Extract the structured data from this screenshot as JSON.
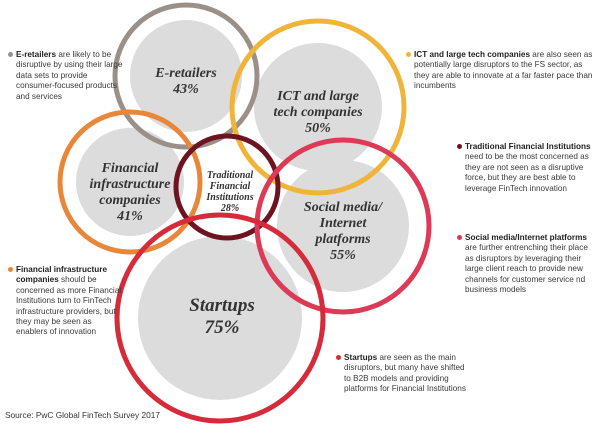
{
  "colors": {
    "e_retailers": "#9a9088",
    "ict": "#f0b43a",
    "traditional": "#6e1320",
    "social_media": "#dc3a56",
    "financial_infrastructure": "#e8873a",
    "startups": "#d52b3b",
    "fill": "#dcdcdc"
  },
  "circles": {
    "e_retailers": {
      "name": "E-retailers",
      "pct": "43%"
    },
    "ict": {
      "name_line1": "ICT and large",
      "name_line2": "tech companies",
      "pct": "50%"
    },
    "financial_infrastructure": {
      "name_line1": "Financial",
      "name_line2": "infrastructure",
      "name_line3": "companies",
      "pct": "41%"
    },
    "traditional": {
      "name_line1": "Traditional",
      "name_line2": "Financial",
      "name_line3": "Institutions",
      "pct": "28%"
    },
    "social_media": {
      "name_line1": "Social media/",
      "name_line2": "Internet",
      "name_line3": "platforms",
      "pct": "55%"
    },
    "startups": {
      "name": "Startups",
      "pct": "75%"
    }
  },
  "annotations": {
    "e_retailers": {
      "title": "E-retailers",
      "text": " are likely to be disruptive by using their large data sets to provide consumer-focused products and services"
    },
    "ict": {
      "title": "ICT and large tech companies",
      "text": " are also seen as potentially large disruptors to the FS sector, as they are able to innovate at a far faster pace than incumbents"
    },
    "traditional": {
      "title": "Traditional Financial Institutions",
      "text": " need to be the most concerned as they are not seen as a disruptive force, but they are best able to leverage FinTech innovation"
    },
    "social_media": {
      "title": "Social media/Internet platforms",
      "text": " are further entrenching their place as disruptors by leveraging their large client reach to provide new channels for customer service nd business models"
    },
    "financial_infrastructure": {
      "title": "Financial infrastructure companies",
      "text": " should be concerned as more Financial Institutions turn to FinTech infrastructure providers, but they may be seen as enablers of innovation"
    },
    "startups": {
      "title": "Startups",
      "text": " are seen as the main disruptors, but many have shifted to B2B models and providing platforms for Financial Institutions"
    }
  },
  "source": "Source: PwC Global FinTech Survey 2017"
}
